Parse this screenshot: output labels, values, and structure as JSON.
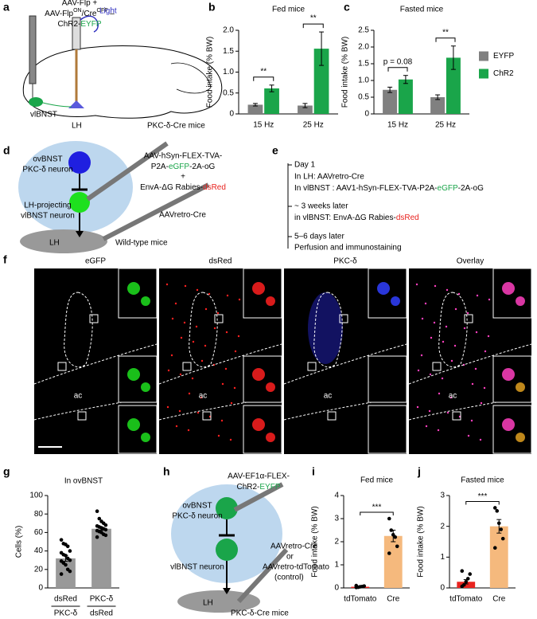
{
  "panel_labels": [
    "a",
    "b",
    "c",
    "d",
    "e",
    "f",
    "g",
    "h",
    "i",
    "j"
  ],
  "panel_a": {
    "line1": "AAV-Flp +",
    "line2": [
      "AAV-Flp",
      "ON",
      "/Cre",
      "OFF",
      " –"
    ],
    "line3": [
      "ChR2-",
      "EYFP"
    ],
    "light": "Light",
    "region": "vlBNST",
    "lh": "LH",
    "mice": "PKC-δ-Cre mice"
  },
  "panel_d": {
    "virus1": [
      "AAV-hSyn-FLEX-TVA-",
      "P2A-",
      "eGFP",
      "-2A-oG",
      "+",
      "EnvA-ΔG Rabies-",
      "dsRed"
    ],
    "neuron1": [
      "ovBNST",
      "PKC-δ neuron"
    ],
    "neuron2": [
      "LH-projecting",
      "vlBNST neuron"
    ],
    "lh": "LH",
    "virus2": "AAVretro-Cre",
    "mice": "Wild-type mice"
  },
  "panel_e": {
    "day1": "Day 1",
    "lh_step": "In LH:  AAVretro-Cre",
    "vl_step": [
      "In vlBNST : AAV1-hSyn-FLEX-TVA-P2A-",
      "eGFP",
      "-2A-oG"
    ],
    "weeks": "~ 3 weeks later",
    "rabies": [
      "in vlBNST: EnvA-ΔG Rabies-",
      "dsRed"
    ],
    "days": "5–6 days later",
    "perfusion": "Perfusion and immunostaining"
  },
  "panel_f": {
    "headers": [
      "eGFP",
      "dsRed",
      "PKC-δ",
      "Overlay"
    ],
    "region_label": "ac"
  },
  "panel_h": {
    "virus1": [
      "AAV-EF1α-FLEX-",
      "ChR2-",
      "EYFP"
    ],
    "neuron1": [
      "ovBNST",
      "PKC-δ neuron"
    ],
    "neuron2": "vlBNST neuron",
    "virus2": [
      "AAVretro-Cre",
      "or",
      "AAVretro-tdTomato",
      "(control)"
    ],
    "lh": "LH",
    "mice": "PKC-δ-Cre mice"
  },
  "chart_data": [
    {
      "type": "bar",
      "title": "Fed mice",
      "ylabel": "Food intake (% BW)",
      "categories": [
        "15 Hz",
        "25 Hz"
      ],
      "series": [
        {
          "name": "EYFP",
          "color": "#808080",
          "values": [
            0.22,
            0.2
          ],
          "errors": [
            0.03,
            0.05
          ]
        },
        {
          "name": "ChR2",
          "color": "#1aa54a",
          "values": [
            0.61,
            1.56
          ],
          "errors": [
            0.08,
            0.4
          ]
        }
      ],
      "ylim": [
        0,
        2
      ],
      "yticks": [
        0,
        0.5,
        {
          "value": 1,
          "label": "1.0"
        },
        1.5,
        {
          "value": 2,
          "label": "2.0"
        }
      ],
      "annotations": [
        {
          "text": "**",
          "category": 0
        },
        {
          "text": "**",
          "category": 1
        }
      ]
    },
    {
      "type": "bar",
      "title": "Fasted mice",
      "ylabel": "Food intake (% BW)",
      "categories": [
        "15 Hz",
        "25 Hz"
      ],
      "series": [
        {
          "name": "EYFP",
          "color": "#808080",
          "values": [
            0.72,
            0.5
          ],
          "errors": [
            0.08,
            0.07
          ]
        },
        {
          "name": "ChR2",
          "color": "#1aa54a",
          "values": [
            1.03,
            1.68
          ],
          "errors": [
            0.12,
            0.35
          ]
        }
      ],
      "ylim": [
        0,
        2.5
      ],
      "yticks": [
        0,
        0.5,
        {
          "value": 1,
          "label": "1.0"
        },
        1.5,
        {
          "value": 2,
          "label": "2.0"
        },
        2.5
      ],
      "annotations": [
        {
          "text": "p = 0.08",
          "category": 0
        },
        {
          "text": "**",
          "category": 1
        }
      ],
      "legend": "right"
    },
    {
      "type": "bar",
      "title": "In ovBNST",
      "ylabel": "Cells (%)",
      "categories": [
        "dsRed",
        "PKC-δ"
      ],
      "groups": [
        "PKC-δ",
        "dsRed"
      ],
      "values": [
        32,
        64
      ],
      "errors": [
        3.2,
        1.6
      ],
      "colors": [
        "#999999",
        "#999999"
      ],
      "points": [
        [
          52,
          48,
          47,
          45,
          40,
          38,
          36,
          35,
          32,
          30,
          29,
          27,
          25,
          20,
          18,
          15
        ],
        [
          83,
          75,
          72,
          70,
          68,
          67,
          66,
          65,
          64,
          63,
          62,
          61,
          60,
          58,
          57,
          55
        ]
      ],
      "ylim": [
        0,
        100
      ],
      "yticks": [
        0,
        20,
        40,
        60,
        80,
        100
      ]
    },
    {
      "type": "bar",
      "title": "Fed mice",
      "ylabel": "Food intake (% BW)",
      "categories": [
        "tdTomato",
        "Cre"
      ],
      "values": [
        0.05,
        2.25
      ],
      "errors": [
        0.02,
        0.25
      ],
      "colors": [
        "#e8231f",
        "#f5b97d"
      ],
      "points": [
        [
          0.02,
          0.03,
          0.05,
          0.06,
          0.08,
          0.1
        ],
        [
          3.0,
          2.5,
          2.3,
          2.2,
          1.8,
          1.5
        ]
      ],
      "ylim": [
        0,
        4
      ],
      "yticks": [
        0,
        1,
        2,
        3,
        4
      ],
      "annotations": [
        {
          "text": "***",
          "categories": [
            0,
            1
          ]
        }
      ]
    },
    {
      "type": "bar",
      "title": "Fasted mice",
      "ylabel": "Food intake (% BW)",
      "categories": [
        "tdTomato",
        "Cre"
      ],
      "values": [
        0.2,
        2.0
      ],
      "errors": [
        0.07,
        0.22
      ],
      "colors": [
        "#e8231f",
        "#f5b97d"
      ],
      "points": [
        [
          0.05,
          0.1,
          0.2,
          0.3,
          0.45,
          0.55
        ],
        [
          2.6,
          2.5,
          2.1,
          1.9,
          1.6,
          1.3
        ]
      ],
      "ylim": [
        0,
        3
      ],
      "yticks": [
        0,
        1,
        2,
        3
      ],
      "annotations": [
        {
          "text": "***",
          "categories": [
            0,
            1
          ]
        }
      ]
    }
  ]
}
